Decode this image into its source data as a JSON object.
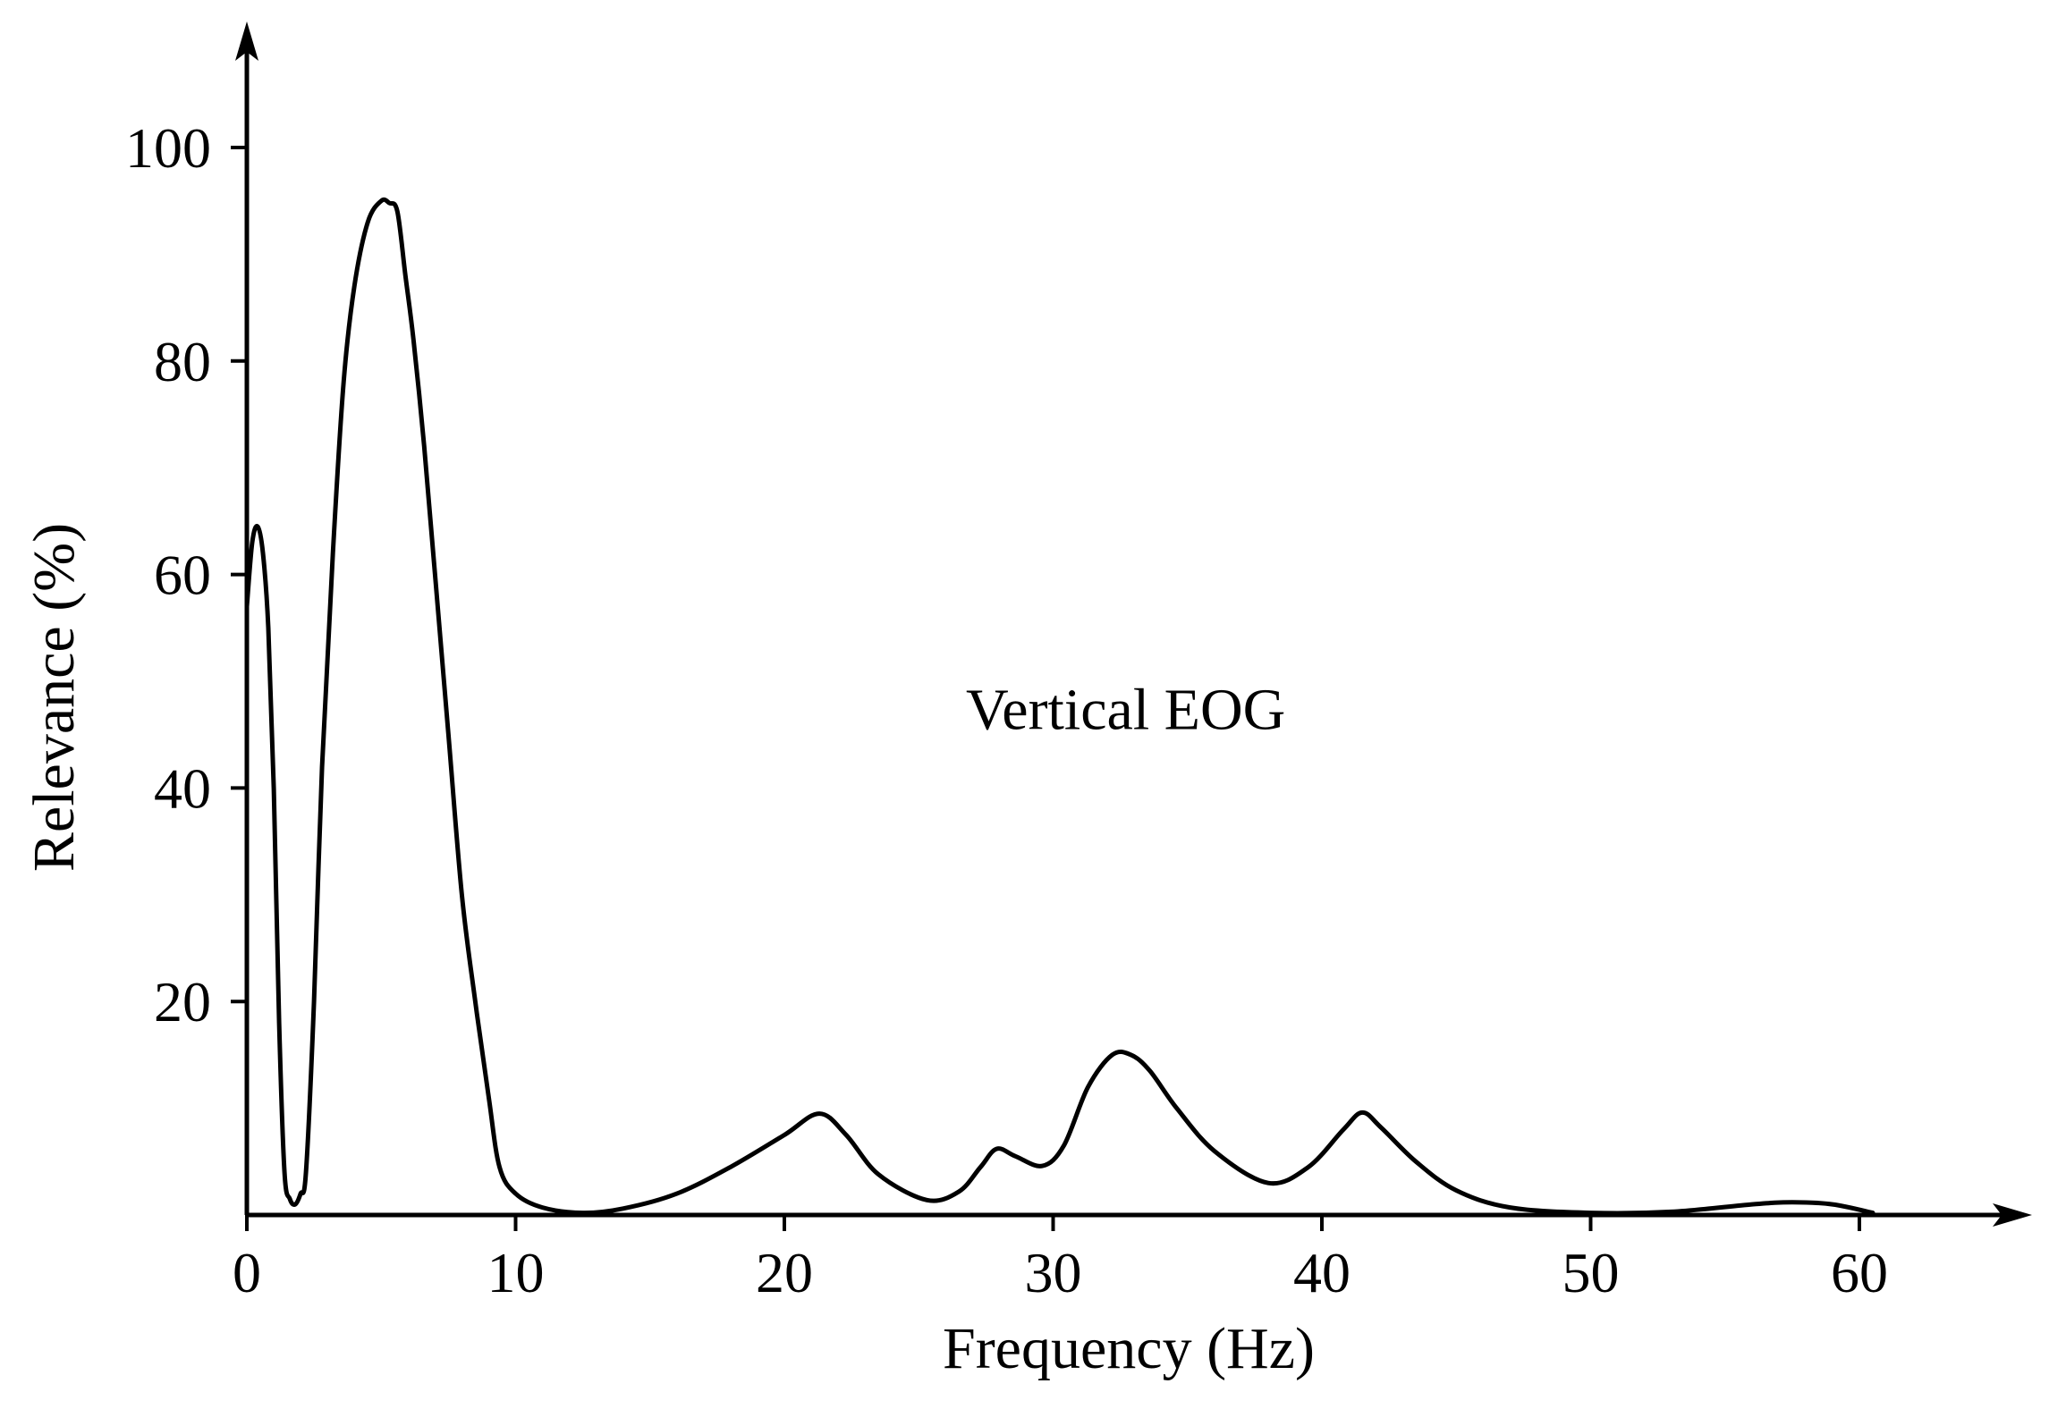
{
  "chart_data": {
    "type": "line",
    "title": "",
    "xlabel": "Frequency (Hz)",
    "ylabel": "Relevance (%)",
    "xlim": [
      0,
      65
    ],
    "ylim": [
      0,
      100
    ],
    "x_ticks": [
      0,
      10,
      20,
      30,
      40,
      50,
      60
    ],
    "y_ticks": [
      20,
      40,
      60,
      80,
      100
    ],
    "grid": false,
    "legend": "none",
    "annotations": [
      {
        "text": "Vertical EOG",
        "x": 32.7,
        "y": 45.5
      }
    ],
    "series": [
      {
        "color": "#000000",
        "x": [
          0,
          0.2,
          0.4,
          0.6,
          0.8,
          1.0,
          1.2,
          1.4,
          1.6,
          1.8,
          2.0,
          2.2,
          2.5,
          2.8,
          3.2,
          3.6,
          4.0,
          4.5,
          5.0,
          5.3,
          5.6,
          5.9,
          6.2,
          6.6,
          7.0,
          7.5,
          8.0,
          8.5,
          9.0,
          9.4,
          10.0,
          11.0,
          12.5,
          14.0,
          16.0,
          18.0,
          20.0,
          21.3,
          22.3,
          23.5,
          25.3,
          26.5,
          27.3,
          27.9,
          28.6,
          29.6,
          30.4,
          31.3,
          32.2,
          32.9,
          33.6,
          34.6,
          36.0,
          38.0,
          39.5,
          40.8,
          41.5,
          42.2,
          43.5,
          45.0,
          47.0,
          50.0,
          53.0,
          56.0,
          57.5,
          59.0,
          60.5
        ],
        "y": [
          57,
          63,
          64.5,
          62,
          55,
          40,
          18,
          4,
          1.5,
          1,
          2,
          4,
          20,
          42,
          62,
          78,
          87,
          93,
          95,
          94.8,
          94,
          88,
          82,
          72,
          60,
          45,
          30,
          20,
          11,
          4.5,
          2,
          0.7,
          0.2,
          0.6,
          2,
          4.5,
          7.5,
          9.5,
          7.5,
          3.8,
          1.4,
          2.2,
          4.5,
          6.2,
          5.5,
          4.6,
          6.5,
          12,
          15,
          15,
          13.5,
          10,
          6,
          3,
          4.5,
          8,
          9.6,
          8.2,
          5,
          2.3,
          0.7,
          0.2,
          0.3,
          1.0,
          1.2,
          1.0,
          0.2
        ]
      }
    ]
  }
}
